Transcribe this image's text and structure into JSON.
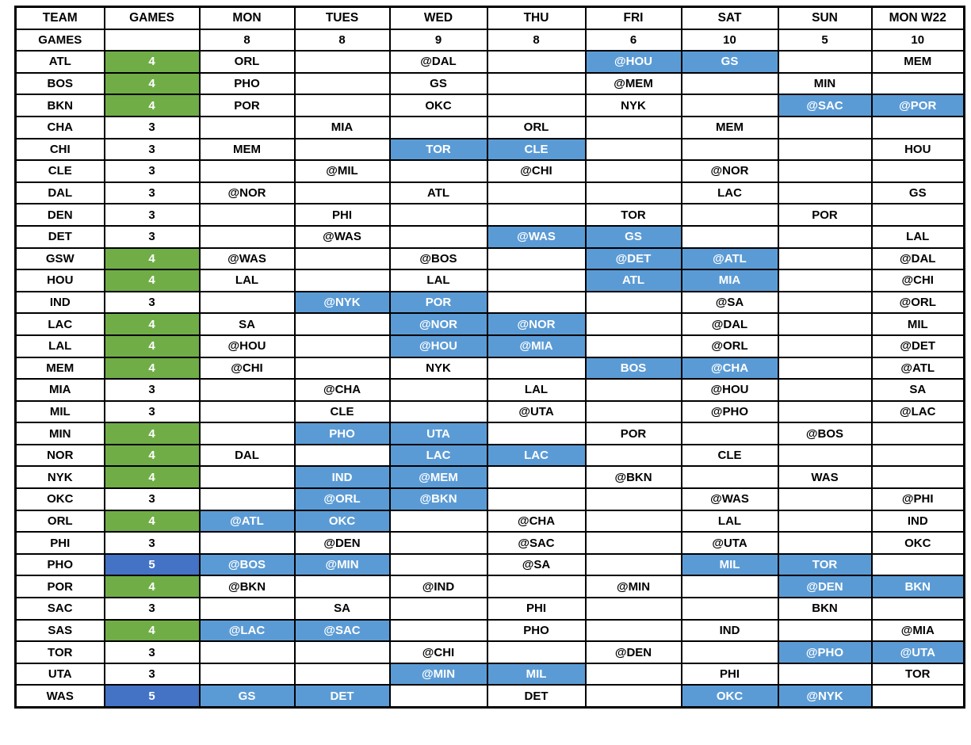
{
  "columns": [
    "TEAM",
    "GAMES",
    "MON",
    "TUES",
    "WED",
    "THU",
    "FRI",
    "SAT",
    "SUN",
    "MON W22"
  ],
  "games_per_day": {
    "label": "GAMES",
    "values": [
      "8",
      "8",
      "9",
      "8",
      "6",
      "10",
      "5",
      "10"
    ]
  },
  "colors": {
    "four_games_fill": "#70AD47",
    "five_games_fill": "#4472C4",
    "back_to_back_fill": "#5B9BD5",
    "grid_border": "#000000",
    "text_default": "#000000",
    "text_on_fill": "#ffffff"
  },
  "rows": [
    {
      "team": "ATL",
      "games": "4",
      "games_color": "green",
      "schedule": [
        "ORL",
        "",
        "@DAL",
        "",
        "@HOU",
        "GS",
        "",
        "MEM"
      ],
      "highlighted_days": [
        4,
        5
      ]
    },
    {
      "team": "BOS",
      "games": "4",
      "games_color": "green",
      "schedule": [
        "PHO",
        "",
        "GS",
        "",
        "@MEM",
        "",
        "MIN",
        ""
      ],
      "highlighted_days": []
    },
    {
      "team": "BKN",
      "games": "4",
      "games_color": "green",
      "schedule": [
        "POR",
        "",
        "OKC",
        "",
        "NYK",
        "",
        "@SAC",
        "@POR"
      ],
      "highlighted_days": [
        6,
        7
      ]
    },
    {
      "team": "CHA",
      "games": "3",
      "games_color": "none",
      "schedule": [
        "",
        "MIA",
        "",
        "ORL",
        "",
        "MEM",
        "",
        ""
      ],
      "highlighted_days": []
    },
    {
      "team": "CHI",
      "games": "3",
      "games_color": "none",
      "schedule": [
        "MEM",
        "",
        "TOR",
        "CLE",
        "",
        "",
        "",
        "HOU"
      ],
      "highlighted_days": [
        2,
        3
      ]
    },
    {
      "team": "CLE",
      "games": "3",
      "games_color": "none",
      "schedule": [
        "",
        "@MIL",
        "",
        "@CHI",
        "",
        "@NOR",
        "",
        ""
      ],
      "highlighted_days": []
    },
    {
      "team": "DAL",
      "games": "3",
      "games_color": "none",
      "schedule": [
        "@NOR",
        "",
        "ATL",
        "",
        "",
        "LAC",
        "",
        "GS"
      ],
      "highlighted_days": []
    },
    {
      "team": "DEN",
      "games": "3",
      "games_color": "none",
      "schedule": [
        "",
        "PHI",
        "",
        "",
        "TOR",
        "",
        "POR",
        ""
      ],
      "highlighted_days": []
    },
    {
      "team": "DET",
      "games": "3",
      "games_color": "none",
      "schedule": [
        "",
        "@WAS",
        "",
        "@WAS",
        "GS",
        "",
        "",
        "LAL"
      ],
      "highlighted_days": [
        3,
        4
      ]
    },
    {
      "team": "GSW",
      "games": "4",
      "games_color": "green",
      "schedule": [
        "@WAS",
        "",
        "@BOS",
        "",
        "@DET",
        "@ATL",
        "",
        "@DAL"
      ],
      "highlighted_days": [
        4,
        5
      ]
    },
    {
      "team": "HOU",
      "games": "4",
      "games_color": "green",
      "schedule": [
        "LAL",
        "",
        "LAL",
        "",
        "ATL",
        "MIA",
        "",
        "@CHI"
      ],
      "highlighted_days": [
        4,
        5
      ]
    },
    {
      "team": "IND",
      "games": "3",
      "games_color": "none",
      "schedule": [
        "",
        "@NYK",
        "POR",
        "",
        "",
        "@SA",
        "",
        "@ORL"
      ],
      "highlighted_days": [
        1,
        2
      ]
    },
    {
      "team": "LAC",
      "games": "4",
      "games_color": "green",
      "schedule": [
        "SA",
        "",
        "@NOR",
        "@NOR",
        "",
        "@DAL",
        "",
        "MIL"
      ],
      "highlighted_days": [
        2,
        3
      ]
    },
    {
      "team": "LAL",
      "games": "4",
      "games_color": "green",
      "schedule": [
        "@HOU",
        "",
        "@HOU",
        "@MIA",
        "",
        "@ORL",
        "",
        "@DET"
      ],
      "highlighted_days": [
        2,
        3
      ]
    },
    {
      "team": "MEM",
      "games": "4",
      "games_color": "green",
      "schedule": [
        "@CHI",
        "",
        "NYK",
        "",
        "BOS",
        "@CHA",
        "",
        "@ATL"
      ],
      "highlighted_days": [
        4,
        5
      ]
    },
    {
      "team": "MIA",
      "games": "3",
      "games_color": "none",
      "schedule": [
        "",
        "@CHA",
        "",
        "LAL",
        "",
        "@HOU",
        "",
        "SA"
      ],
      "highlighted_days": []
    },
    {
      "team": "MIL",
      "games": "3",
      "games_color": "none",
      "schedule": [
        "",
        "CLE",
        "",
        "@UTA",
        "",
        "@PHO",
        "",
        "@LAC"
      ],
      "highlighted_days": []
    },
    {
      "team": "MIN",
      "games": "4",
      "games_color": "green",
      "schedule": [
        "",
        "PHO",
        "UTA",
        "",
        "POR",
        "",
        "@BOS",
        ""
      ],
      "highlighted_days": [
        1,
        2
      ]
    },
    {
      "team": "NOR",
      "games": "4",
      "games_color": "green",
      "schedule": [
        "DAL",
        "",
        "LAC",
        "LAC",
        "",
        "CLE",
        "",
        ""
      ],
      "highlighted_days": [
        2,
        3
      ]
    },
    {
      "team": "NYK",
      "games": "4",
      "games_color": "green",
      "schedule": [
        "",
        "IND",
        "@MEM",
        "",
        "@BKN",
        "",
        "WAS",
        ""
      ],
      "highlighted_days": [
        1,
        2
      ]
    },
    {
      "team": "OKC",
      "games": "3",
      "games_color": "none",
      "schedule": [
        "",
        "@ORL",
        "@BKN",
        "",
        "",
        "@WAS",
        "",
        "@PHI"
      ],
      "highlighted_days": [
        1,
        2
      ]
    },
    {
      "team": "ORL",
      "games": "4",
      "games_color": "green",
      "schedule": [
        "@ATL",
        "OKC",
        "",
        "@CHA",
        "",
        "LAL",
        "",
        "IND"
      ],
      "highlighted_days": [
        0,
        1
      ]
    },
    {
      "team": "PHI",
      "games": "3",
      "games_color": "none",
      "schedule": [
        "",
        "@DEN",
        "",
        "@SAC",
        "",
        "@UTA",
        "",
        "OKC"
      ],
      "highlighted_days": []
    },
    {
      "team": "PHO",
      "games": "5",
      "games_color": "blue",
      "schedule": [
        "@BOS",
        "@MIN",
        "",
        "@SA",
        "",
        "MIL",
        "TOR",
        ""
      ],
      "highlighted_days": [
        0,
        1,
        5,
        6
      ]
    },
    {
      "team": "POR",
      "games": "4",
      "games_color": "green",
      "schedule": [
        "@BKN",
        "",
        "@IND",
        "",
        "@MIN",
        "",
        "@DEN",
        "BKN"
      ],
      "highlighted_days": [
        6,
        7
      ]
    },
    {
      "team": "SAC",
      "games": "3",
      "games_color": "none",
      "schedule": [
        "",
        "SA",
        "",
        "PHI",
        "",
        "",
        "BKN",
        ""
      ],
      "highlighted_days": []
    },
    {
      "team": "SAS",
      "games": "4",
      "games_color": "green",
      "schedule": [
        "@LAC",
        "@SAC",
        "",
        "PHO",
        "",
        "IND",
        "",
        "@MIA"
      ],
      "highlighted_days": [
        0,
        1
      ]
    },
    {
      "team": "TOR",
      "games": "3",
      "games_color": "none",
      "schedule": [
        "",
        "",
        "@CHI",
        "",
        "@DEN",
        "",
        "@PHO",
        "@UTA"
      ],
      "highlighted_days": [
        6,
        7
      ]
    },
    {
      "team": "UTA",
      "games": "3",
      "games_color": "none",
      "schedule": [
        "",
        "",
        "@MIN",
        "MIL",
        "",
        "PHI",
        "",
        "TOR"
      ],
      "highlighted_days": [
        2,
        3
      ]
    },
    {
      "team": "WAS",
      "games": "5",
      "games_color": "blue",
      "schedule": [
        "GS",
        "DET",
        "",
        "DET",
        "",
        "OKC",
        "@NYK",
        ""
      ],
      "highlighted_days": [
        0,
        1,
        5,
        6
      ]
    }
  ]
}
